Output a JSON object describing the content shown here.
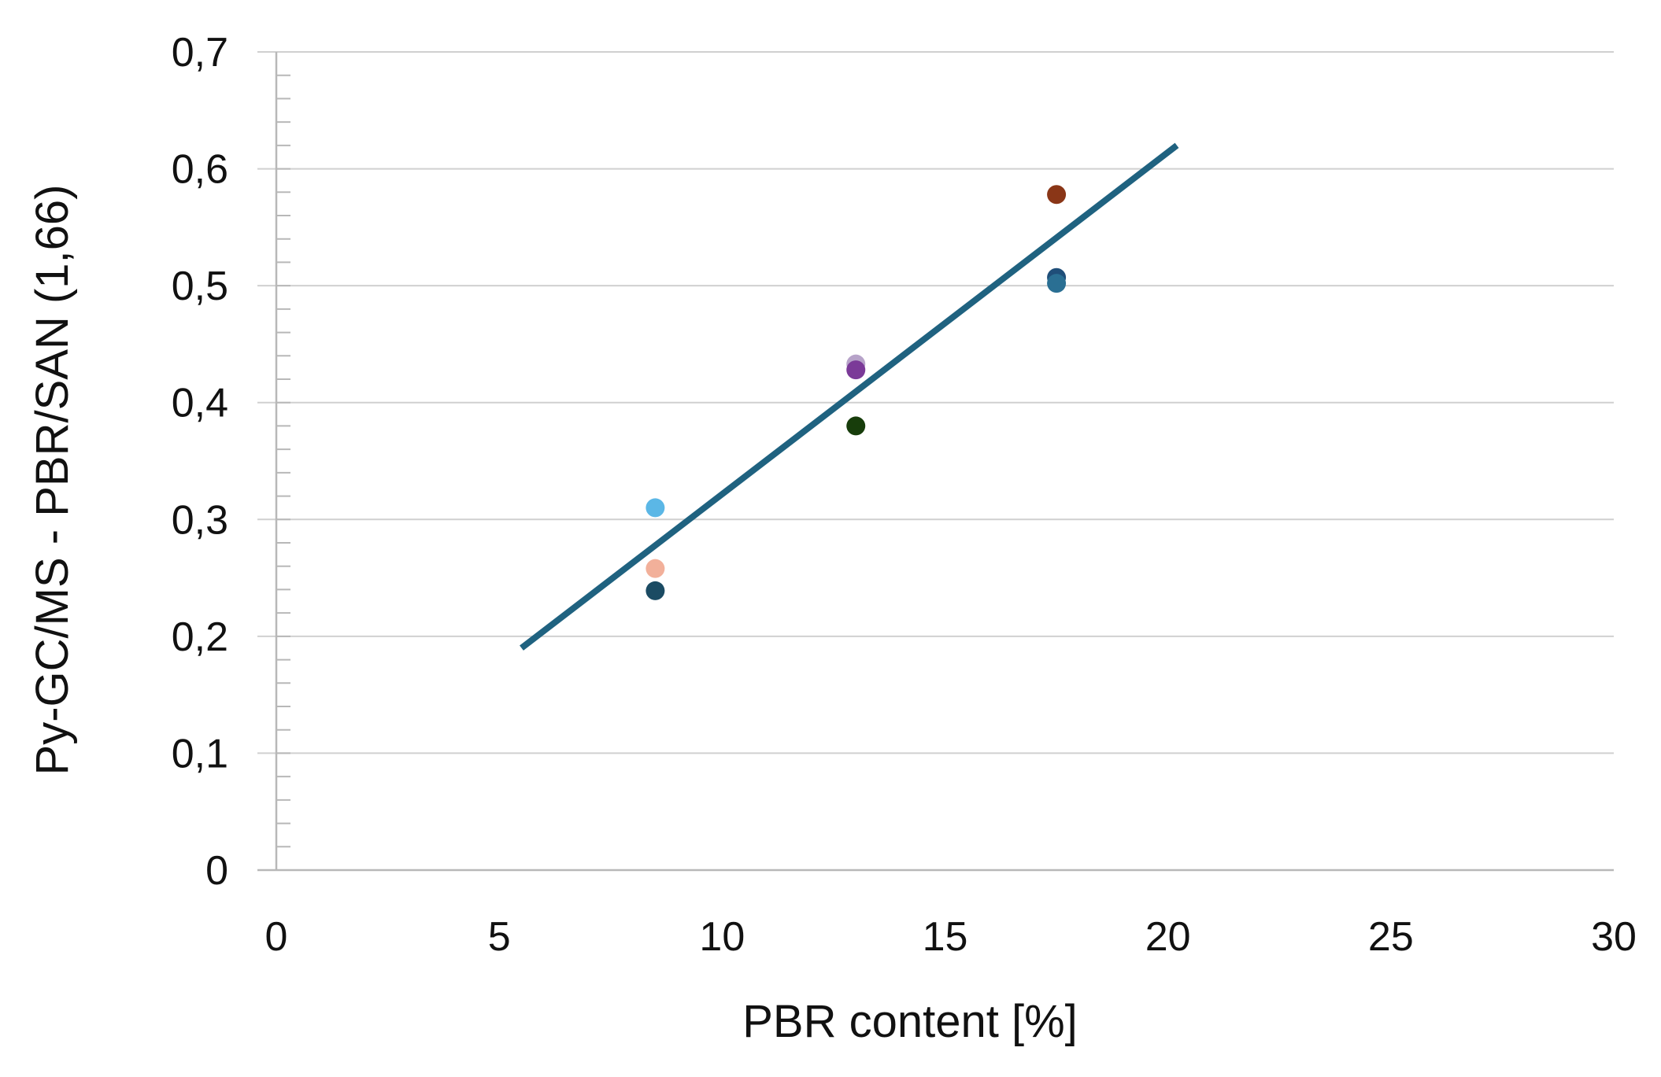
{
  "chart_data": {
    "type": "scatter",
    "title": "",
    "xlabel": "PBR content [%]",
    "ylabel": "Py-GC/MS - PBR/SAN (1,66)",
    "xlim": [
      0,
      30
    ],
    "ylim": [
      0,
      0.7
    ],
    "x_ticks": [
      "0",
      "5",
      "10",
      "15",
      "20",
      "25",
      "30"
    ],
    "y_ticks": [
      "0",
      "0,1",
      "0,2",
      "0,3",
      "0,4",
      "0,5",
      "0,6",
      "0,7"
    ],
    "grid": "horizontal",
    "legend": "none",
    "points": [
      {
        "x": 8.5,
        "y": 0.31,
        "color": "#5bb7e6"
      },
      {
        "x": 8.5,
        "y": 0.258,
        "color": "#f2b09a"
      },
      {
        "x": 8.5,
        "y": 0.239,
        "color": "#1b4b63"
      },
      {
        "x": 13.0,
        "y": 0.433,
        "color": "#b7a3c9"
      },
      {
        "x": 13.0,
        "y": 0.428,
        "color": "#7b3a98"
      },
      {
        "x": 13.0,
        "y": 0.38,
        "color": "#173d0b"
      },
      {
        "x": 17.5,
        "y": 0.578,
        "color": "#8a3617"
      },
      {
        "x": 17.5,
        "y": 0.507,
        "color": "#1f4e79"
      },
      {
        "x": 17.5,
        "y": 0.502,
        "color": "#2a6f93"
      }
    ],
    "trendline": {
      "x": [
        5.5,
        20.2
      ],
      "y": [
        0.19,
        0.62
      ],
      "color": "#1f6280"
    },
    "colors": {
      "gridline": "#d0d0d0",
      "axis": "#b8b8b8"
    }
  }
}
